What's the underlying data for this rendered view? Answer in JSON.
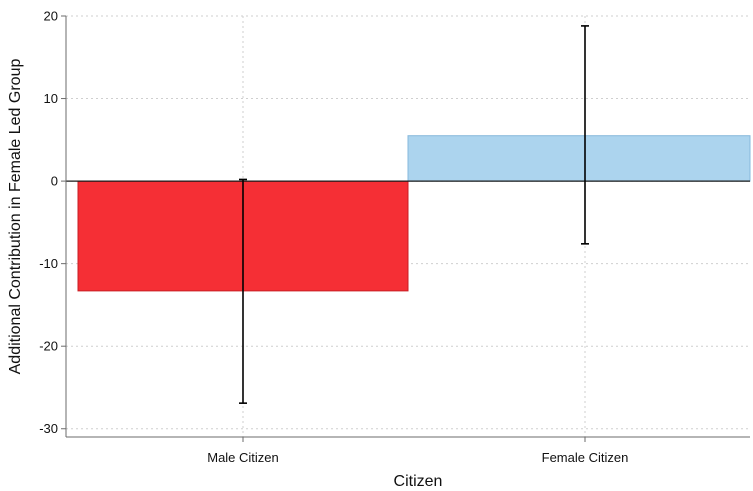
{
  "chart_data": {
    "type": "bar",
    "xlabel": "Citizen",
    "ylabel": "Additional Contribution in Female Led Group",
    "categories": [
      "Male Citizen",
      "Female Citizen"
    ],
    "values": [
      -13.3,
      5.5
    ],
    "error_low": [
      -26.9,
      -7.6
    ],
    "error_high": [
      0.2,
      18.8
    ],
    "bar_colors": [
      "#f52f35",
      "#acd4ee"
    ],
    "bar_edge_colors": [
      "#c81e24",
      "#86b8dc"
    ],
    "ylim": [
      -31,
      20
    ],
    "yticks": [
      20,
      10,
      0,
      -10,
      -20,
      -30
    ],
    "grid": true
  }
}
